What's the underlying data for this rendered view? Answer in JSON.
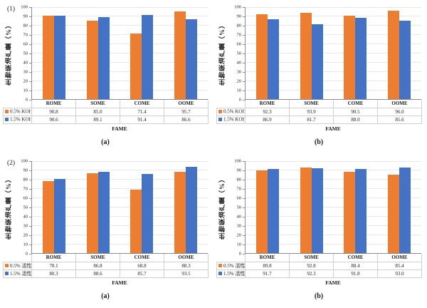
{
  "colors": {
    "series_orange": "#ED7D31",
    "series_blue": "#4472C4",
    "axis_line": "#8c8c8c",
    "gridline": "#e8e8e8",
    "table_border": "#d0d0d0"
  },
  "chart_data": [
    {
      "type": "bar",
      "corner_label": "(1)",
      "panel_label": "(a)",
      "ylabel": "生物柴油产量（%）",
      "xlabel": "FAME",
      "ylim": [
        0,
        100
      ],
      "yticks": [
        0,
        10,
        20,
        30,
        40,
        50,
        60,
        70,
        80,
        90,
        100
      ],
      "grid": true,
      "legend_position": "table-left",
      "categories": [
        "ROME",
        "SOME",
        "COME",
        "OOME"
      ],
      "series": [
        {
          "name": "0.5% KOH",
          "color": "#ED7D31",
          "values": [
            90.8,
            85.0,
            71.4,
            95.7
          ]
        },
        {
          "name": "1.5% KOH",
          "color": "#4472C4",
          "values": [
            90.6,
            89.1,
            91.4,
            86.6
          ]
        }
      ]
    },
    {
      "type": "bar",
      "corner_label": "",
      "panel_label": "(b)",
      "ylabel": "生物柴油产量（%）",
      "xlabel": "FAME",
      "ylim": [
        0,
        100
      ],
      "yticks": [
        0,
        10,
        20,
        30,
        40,
        50,
        60,
        70,
        80,
        90,
        100
      ],
      "grid": true,
      "legend_position": "table-left",
      "categories": [
        "ROME",
        "SOME",
        "COME",
        "OOME"
      ],
      "series": [
        {
          "name": "0.5% KOH",
          "color": "#ED7D31",
          "values": [
            92.3,
            93.9,
            90.5,
            96.0
          ]
        },
        {
          "name": "1.5% KOH",
          "color": "#4472C4",
          "values": [
            86.9,
            81.7,
            88.0,
            85.6
          ]
        }
      ]
    },
    {
      "type": "bar",
      "corner_label": "(2)",
      "panel_label": "(a)",
      "ylabel": "生物柴油产量（%）",
      "xlabel": "FAME",
      "ylim": [
        0,
        100
      ],
      "yticks": [
        0,
        10,
        20,
        30,
        40,
        50,
        60,
        70,
        80,
        90,
        100
      ],
      "grid": true,
      "legend_position": "table-left",
      "categories": [
        "ROME",
        "SOME",
        "COME",
        "OOME"
      ],
      "series": [
        {
          "name": "0.5% 活性炭",
          "color": "#ED7D31",
          "values": [
            78.1,
            86.8,
            68.8,
            88.3
          ]
        },
        {
          "name": "1.5% 活性炭",
          "color": "#4472C4",
          "values": [
            80.3,
            88.6,
            85.7,
            93.5
          ]
        }
      ]
    },
    {
      "type": "bar",
      "corner_label": "",
      "panel_label": "(b)",
      "ylabel": "生物柴油产量（%）",
      "xlabel": "FAME",
      "ylim": [
        0,
        100
      ],
      "yticks": [
        0,
        10,
        20,
        30,
        40,
        50,
        60,
        70,
        80,
        90,
        100
      ],
      "grid": true,
      "legend_position": "table-left",
      "categories": [
        "ROME",
        "SOME",
        "COME",
        "OOME"
      ],
      "series": [
        {
          "name": "0.5% 活性炭",
          "color": "#ED7D31",
          "values": [
            89.8,
            92.8,
            88.4,
            85.4
          ]
        },
        {
          "name": "1.5% 活性炭",
          "color": "#4472C4",
          "values": [
            91.7,
            92.3,
            91.8,
            93.0
          ]
        }
      ]
    }
  ]
}
